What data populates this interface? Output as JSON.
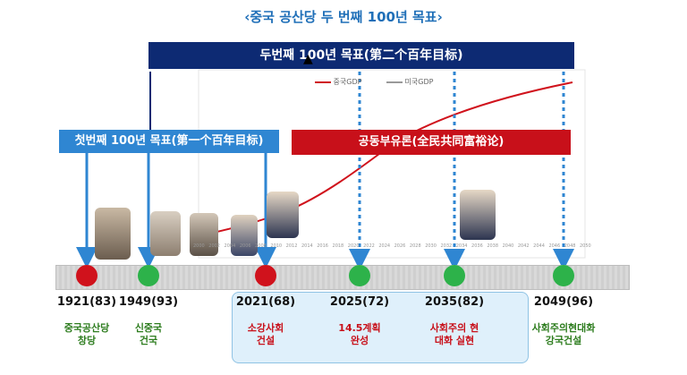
{
  "title": "‹중국 공산당 두 번째 100년 목표›",
  "banners": {
    "second": "두번째 100년 목표(第二个百年目标)",
    "first": "첫번째 100년 목표(第一个百年目标)",
    "common": "공동부유론(全民共同富裕论)"
  },
  "legend": {
    "china": "중국GDP",
    "us": "미국GDP"
  },
  "chart_axis_years": [
    "2000",
    "2002",
    "2004",
    "2006",
    "2008",
    "2010",
    "2012",
    "2014",
    "2016",
    "2018",
    "2020",
    "2022",
    "2024",
    "2026",
    "2028",
    "2030",
    "2032",
    "2034",
    "2036",
    "2038",
    "2040",
    "2042",
    "2044",
    "2046",
    "2048",
    "2050"
  ],
  "milestones": [
    {
      "year": "1921(83)",
      "desc1": "중국공산당",
      "desc2": "창당",
      "dot": "#d0121c",
      "tone": "green"
    },
    {
      "year": "1949(93)",
      "desc1": "신중국",
      "desc2": "건국",
      "dot": "#2db24a",
      "tone": "green"
    },
    {
      "year": "2021(68)",
      "desc1": "소강사회",
      "desc2": "건설",
      "dot": "#d0121c",
      "tone": "red"
    },
    {
      "year": "2025(72)",
      "desc1": "14.5계획",
      "desc2": "완성",
      "dot": "#2db24a",
      "tone": "red"
    },
    {
      "year": "2035(82)",
      "desc1": "사회주의 현",
      "desc2": "대화 실현",
      "dot": "#2db24a",
      "tone": "red"
    },
    {
      "year": "2049(96)",
      "desc1": "사회주의현대화",
      "desc2": "강국건설",
      "dot": "#2db24a",
      "tone": "green"
    }
  ],
  "colors": {
    "navy": "#0d2a73",
    "blue": "#2f86d2",
    "red": "#c8101a",
    "green": "#2db24a"
  }
}
